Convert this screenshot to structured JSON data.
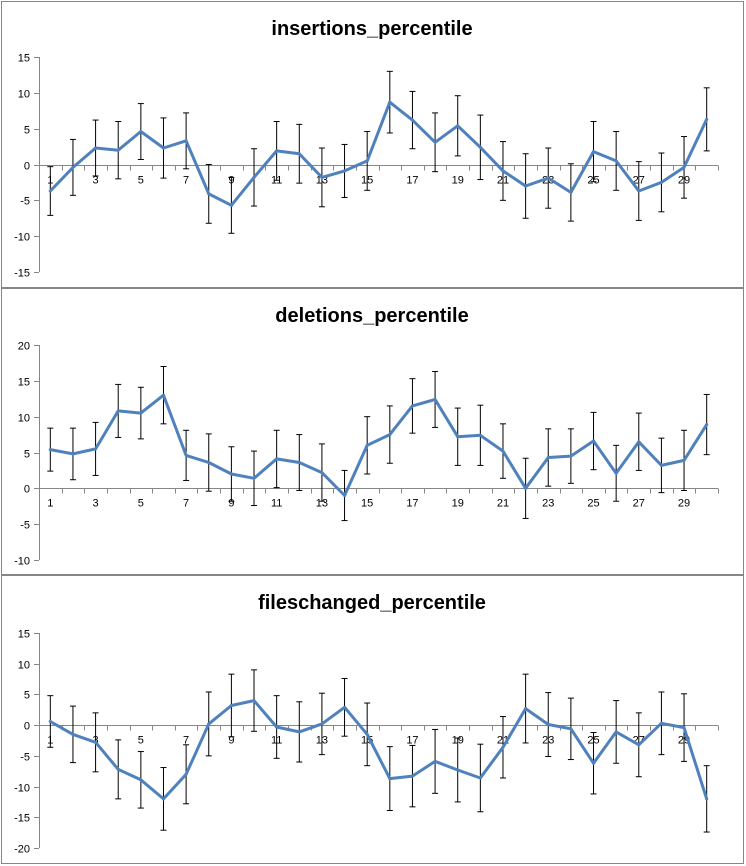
{
  "chart_data": [
    {
      "type": "line",
      "title": "insertions_percentile",
      "ylim": [
        -15,
        15
      ],
      "yticks": [
        15,
        10,
        5,
        0,
        -5,
        -10,
        -15
      ],
      "x": [
        1,
        2,
        3,
        4,
        5,
        6,
        7,
        8,
        9,
        10,
        11,
        12,
        13,
        14,
        15,
        16,
        17,
        18,
        19,
        20,
        21,
        22,
        23,
        24,
        25,
        26,
        27,
        28,
        29,
        30
      ],
      "xtick_labels": [
        "1",
        "3",
        "5",
        "7",
        "9",
        "11",
        "13",
        "15",
        "17",
        "19",
        "21",
        "23",
        "25",
        "27",
        "29"
      ],
      "series": [
        {
          "values": [
            -3.7,
            -0.4,
            2.3,
            2.0,
            4.6,
            2.3,
            3.3,
            -4.1,
            -5.7,
            -1.8,
            1.9,
            1.5,
            -1.8,
            -0.9,
            0.5,
            8.7,
            6.2,
            3.1,
            5.4,
            2.4,
            -0.9,
            -3.0,
            -1.9,
            -3.9,
            1.8,
            0.5,
            -3.7,
            -2.5,
            -0.4,
            6.3
          ],
          "error": [
            3.4,
            3.9,
            3.9,
            4.0,
            3.9,
            4.2,
            3.9,
            4.1,
            3.9,
            4.0,
            4.1,
            4.1,
            4.1,
            3.7,
            4.1,
            4.3,
            4.0,
            4.1,
            4.2,
            4.5,
            4.1,
            4.5,
            4.2,
            4.0,
            4.2,
            4.1,
            4.1,
            4.1,
            4.3,
            4.4
          ]
        }
      ],
      "grid": false,
      "color": "#4f81bd"
    },
    {
      "type": "line",
      "title": "deletions_percentile",
      "ylim": [
        -10,
        20
      ],
      "yticks": [
        20,
        15,
        10,
        5,
        0,
        -5,
        -10
      ],
      "x": [
        1,
        2,
        3,
        4,
        5,
        6,
        7,
        8,
        9,
        10,
        11,
        12,
        13,
        14,
        15,
        16,
        17,
        18,
        19,
        20,
        21,
        22,
        23,
        24,
        25,
        26,
        27,
        28,
        29,
        30
      ],
      "xtick_labels": [
        "1",
        "3",
        "5",
        "7",
        "9",
        "11",
        "13",
        "15",
        "17",
        "19",
        "21",
        "23",
        "25",
        "27",
        "29"
      ],
      "series": [
        {
          "values": [
            5.4,
            4.8,
            5.5,
            10.8,
            10.5,
            13.0,
            4.6,
            3.6,
            2.0,
            1.4,
            4.1,
            3.6,
            2.2,
            -1.0,
            6.0,
            7.5,
            11.5,
            12.4,
            7.2,
            7.4,
            5.2,
            0.0,
            4.3,
            4.5,
            6.6,
            2.1,
            6.5,
            3.2,
            3.9,
            8.9
          ],
          "error": [
            3.0,
            3.6,
            3.7,
            3.7,
            3.6,
            4.0,
            3.5,
            4.0,
            3.8,
            3.8,
            4.0,
            3.9,
            4.0,
            3.5,
            4.0,
            4.0,
            3.8,
            3.9,
            4.0,
            4.2,
            3.8,
            4.2,
            4.0,
            3.8,
            4.0,
            3.9,
            4.0,
            3.8,
            4.2,
            4.2
          ]
        }
      ],
      "grid": false,
      "color": "#4f81bd"
    },
    {
      "type": "line",
      "title": "fileschanged_percentile",
      "ylim": [
        -20,
        15
      ],
      "yticks": [
        15,
        10,
        5,
        0,
        -5,
        -10,
        -15,
        -20
      ],
      "x": [
        1,
        2,
        3,
        4,
        5,
        6,
        7,
        8,
        9,
        10,
        11,
        12,
        13,
        14,
        15,
        16,
        17,
        18,
        19,
        20,
        21,
        22,
        23,
        24,
        25,
        26,
        27,
        28,
        29,
        30
      ],
      "xtick_labels": [
        "1",
        "3",
        "5",
        "7",
        "9",
        "11",
        "13",
        "15",
        "17",
        "19",
        "21",
        "23",
        "25",
        "27",
        "29"
      ],
      "series": [
        {
          "values": [
            0.6,
            -1.5,
            -2.8,
            -7.2,
            -8.9,
            -12.0,
            -8.0,
            0.2,
            3.2,
            4.0,
            -0.3,
            -1.1,
            0.2,
            2.9,
            -1.5,
            -8.7,
            -8.3,
            -5.9,
            -7.3,
            -8.6,
            -3.6,
            2.7,
            0.1,
            -0.6,
            -6.2,
            -1.1,
            -3.2,
            0.3,
            -0.4,
            -12.0
          ],
          "error": [
            4.2,
            4.6,
            4.8,
            4.8,
            4.6,
            5.1,
            4.8,
            5.2,
            5.1,
            5.0,
            5.1,
            4.9,
            5.0,
            4.7,
            5.1,
            5.2,
            5.0,
            5.2,
            5.2,
            5.5,
            5.0,
            5.6,
            5.2,
            5.0,
            5.0,
            5.1,
            5.2,
            5.1,
            5.5,
            5.4
          ]
        }
      ],
      "grid": false,
      "color": "#4f81bd"
    }
  ]
}
